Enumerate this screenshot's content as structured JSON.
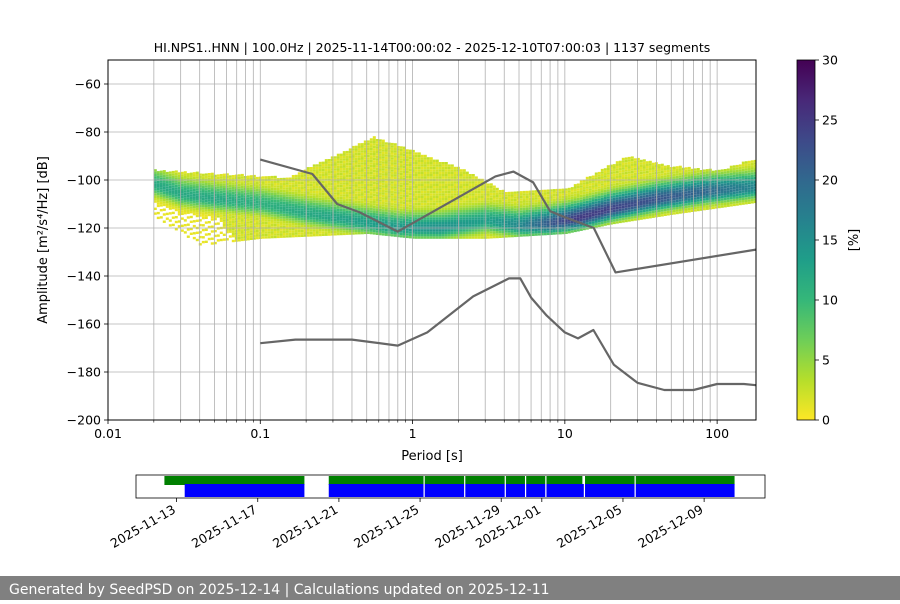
{
  "chart_data": {
    "type": "heatmap",
    "title": "HI.NPS1..HNN | 100.0Hz | 2025-11-14T00:00:02 - 2025-12-10T07:00:03 | 1137 segments",
    "xlabel": "Period [s]",
    "ylabel": "Amplitude [m²/s⁴/Hz] [dB]",
    "x_scale": "log",
    "xlim": [
      0.01,
      180
    ],
    "ylim": [
      -200,
      -50
    ],
    "grid": "on",
    "x_ticks": [
      0.01,
      0.1,
      1,
      10,
      100
    ],
    "x_tick_labels": [
      "0.01",
      "0.1",
      "1",
      "10",
      "100"
    ],
    "y_ticks": [
      -200,
      -180,
      -160,
      -140,
      -120,
      -100,
      -80,
      -60
    ],
    "y_tick_labels": [
      "−200",
      "−180",
      "−160",
      "−140",
      "−120",
      "−100",
      "−80",
      "−60"
    ],
    "colorbar": {
      "label": "[%]",
      "min": 0,
      "max": 30,
      "ticks": [
        0,
        5,
        10,
        15,
        20,
        25,
        30
      ],
      "tick_labels": [
        "0",
        "5",
        "10",
        "15",
        "20",
        "25",
        "30"
      ],
      "colormap": [
        "#fde725",
        "#b5de2b",
        "#6ece58",
        "#35b779",
        "#1f9e89",
        "#26828e",
        "#31688e",
        "#3e4989",
        "#482878",
        "#440154"
      ]
    },
    "ridge": [
      {
        "period": 0.02,
        "db": -102,
        "peak_pct": 12
      },
      {
        "period": 0.03,
        "db": -106,
        "peak_pct": 12
      },
      {
        "period": 0.05,
        "db": -108,
        "peak_pct": 12
      },
      {
        "period": 0.1,
        "db": -110,
        "peak_pct": 11
      },
      {
        "period": 0.2,
        "db": -114,
        "peak_pct": 12
      },
      {
        "period": 0.4,
        "db": -117,
        "peak_pct": 13
      },
      {
        "period": 0.8,
        "db": -120,
        "peak_pct": 14
      },
      {
        "period": 1.5,
        "db": -120,
        "peak_pct": 15
      },
      {
        "period": 3,
        "db": -117,
        "peak_pct": 13
      },
      {
        "period": 5,
        "db": -119,
        "peak_pct": 16
      },
      {
        "period": 8,
        "db": -118,
        "peak_pct": 22
      },
      {
        "period": 12,
        "db": -116,
        "peak_pct": 25
      },
      {
        "period": 20,
        "db": -112,
        "peak_pct": 24
      },
      {
        "period": 40,
        "db": -108,
        "peak_pct": 22
      },
      {
        "period": 80,
        "db": -105,
        "peak_pct": 20
      },
      {
        "period": 180,
        "db": -103,
        "peak_pct": 16
      }
    ],
    "envelope_upper": [
      {
        "period": 0.02,
        "db": -96
      },
      {
        "period": 0.15,
        "db": -99
      },
      {
        "period": 0.3,
        "db": -90
      },
      {
        "period": 0.55,
        "db": -82
      },
      {
        "period": 1,
        "db": -88
      },
      {
        "period": 2,
        "db": -95
      },
      {
        "period": 4,
        "db": -105
      },
      {
        "period": 10,
        "db": -104
      },
      {
        "period": 25,
        "db": -90
      },
      {
        "period": 45,
        "db": -94
      },
      {
        "period": 100,
        "db": -96
      },
      {
        "period": 180,
        "db": -91
      }
    ],
    "envelope_lower": [
      {
        "period": 0.02,
        "db": -115
      },
      {
        "period": 0.04,
        "db": -127
      },
      {
        "period": 0.1,
        "db": -124
      },
      {
        "period": 0.5,
        "db": -122
      },
      {
        "period": 1,
        "db": -124
      },
      {
        "period": 3,
        "db": -124
      },
      {
        "period": 10,
        "db": -122
      },
      {
        "period": 20,
        "db": -118
      },
      {
        "period": 50,
        "db": -114
      },
      {
        "period": 180,
        "db": -109
      }
    ],
    "series": [
      {
        "name": "",
        "period": [
          0.1,
          0.22,
          0.32,
          0.45,
          0.8,
          3.5,
          4.6,
          6.2,
          8.0,
          10.0,
          15.5,
          21.5,
          180
        ],
        "db": [
          -91.5,
          -97.5,
          -110,
          -113.5,
          -121.5,
          -98.5,
          -96.5,
          -101,
          -113,
          -115.5,
          -120,
          -138.5,
          -129
        ]
      },
      {
        "name": "",
        "period": [
          0.1,
          0.17,
          0.4,
          0.8,
          1.25,
          2.5,
          4.3,
          5.1,
          6.0,
          7.6,
          10.0,
          12.2,
          15.4,
          21.0,
          30,
          45,
          70,
          100,
          150,
          180
        ],
        "db": [
          -168,
          -166.5,
          -166.5,
          -169,
          -163.5,
          -148.5,
          -141,
          -141,
          -149,
          -156.5,
          -163.5,
          -166,
          -162.5,
          -177,
          -184.5,
          -187.5,
          -187.5,
          -185,
          -185,
          -185.5
        ]
      }
    ],
    "timeline": {
      "xlim": [
        "2025-11-11",
        "2025-12-12"
      ],
      "tick_labels": [
        "2025-11-13",
        "2025-11-17",
        "2025-11-21",
        "2025-11-25",
        "2025-11-29",
        "2025-12-01",
        "2025-12-05",
        "2025-12-09"
      ],
      "tick_dates": [
        "2025-11-13",
        "2025-11-17",
        "2025-11-21",
        "2025-11-25",
        "2025-11-29",
        "2025-12-01",
        "2025-12-05",
        "2025-12-09"
      ],
      "available": [
        {
          "start": "2025-11-12.4",
          "end": "2025-11-19.3",
          "color": "#008000"
        },
        {
          "start": "2025-11-20.5",
          "end": "2025-12-03.0",
          "color": "#008000"
        },
        {
          "start": "2025-12-03.1",
          "end": "2025-12-10.5",
          "color": "#008000"
        }
      ],
      "processed": [
        {
          "start": "2025-11-13.4",
          "end": "2025-11-19.3",
          "color": "#0000ff"
        },
        {
          "start": "2025-11-20.5",
          "end": "2025-12-10.5",
          "color": "#0000ff"
        }
      ],
      "gaps": [
        "2025-11-25.2",
        "2025-11-27.2",
        "2025-11-29.2",
        "2025-11-30.2",
        "2025-12-01.2",
        "2025-12-03.1",
        "2025-12-05.6"
      ]
    }
  },
  "footer_text": "Generated by SeedPSD on 2025-12-14 | Calculations updated on 2025-12-11"
}
